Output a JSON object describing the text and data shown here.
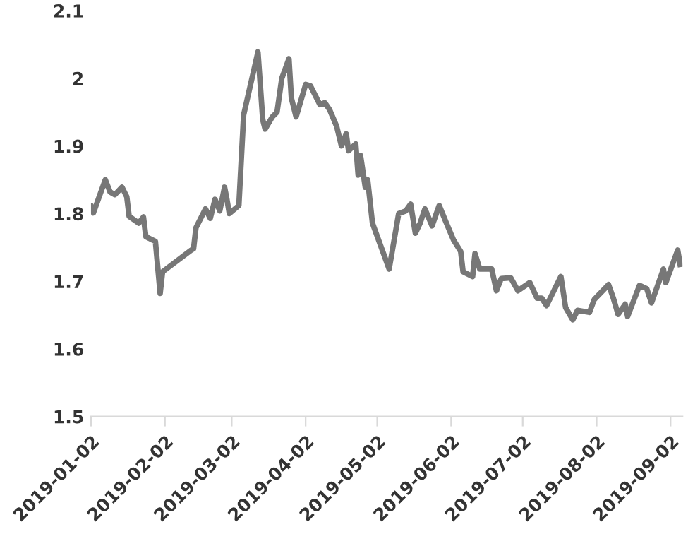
{
  "chart_data": {
    "type": "line",
    "grid": false,
    "legend": false,
    "marker": "none",
    "line_style": "solid",
    "xlim": [
      "2019-01-02",
      "2019-09-07"
    ],
    "xticks": [
      "2019-01-02",
      "2019-02-02",
      "2019-03-02",
      "2019-04-02",
      "2019-05-02",
      "2019-06-02",
      "2019-07-02",
      "2019-08-02",
      "2019-09-02"
    ],
    "ylim": [
      1.5,
      2.1
    ],
    "yticks": [
      1.5,
      1.6,
      1.7,
      1.8,
      1.9,
      {
        "value": 2,
        "label": "2"
      },
      2.1
    ],
    "x": [
      "2019-01-02",
      "2019-01-03",
      "2019-01-08",
      "2019-01-10",
      "2019-01-12",
      "2019-01-15",
      "2019-01-17",
      "2019-01-18",
      "2019-01-22",
      "2019-01-24",
      "2019-01-25",
      "2019-01-29",
      "2019-01-31",
      "2019-02-01",
      "2019-02-13",
      "2019-02-14",
      "2019-02-15",
      "2019-02-19",
      "2019-02-21",
      "2019-02-23",
      "2019-02-25",
      "2019-02-27",
      "2019-02-28",
      "2019-03-01",
      "2019-03-05",
      "2019-03-07",
      "2019-03-13",
      "2019-03-15",
      "2019-03-16",
      "2019-03-19",
      "2019-03-21",
      "2019-03-23",
      "2019-03-26",
      "2019-03-27",
      "2019-03-29",
      "2019-04-02",
      "2019-04-04",
      "2019-04-08",
      "2019-04-10",
      "2019-04-12",
      "2019-04-15",
      "2019-04-17",
      "2019-04-19",
      "2019-04-20",
      "2019-04-23",
      "2019-04-24",
      "2019-04-25",
      "2019-04-27",
      "2019-04-28",
      "2019-04-30",
      "2019-05-07",
      "2019-05-11",
      "2019-05-14",
      "2019-05-16",
      "2019-05-18",
      "2019-05-20",
      "2019-05-22",
      "2019-05-25",
      "2019-05-28",
      "2019-05-31",
      "2019-06-03",
      "2019-06-06",
      "2019-06-07",
      "2019-06-11",
      "2019-06-12",
      "2019-06-14",
      "2019-06-19",
      "2019-06-21",
      "2019-06-23",
      "2019-06-27",
      "2019-06-30",
      "2019-07-05",
      "2019-07-08",
      "2019-07-10",
      "2019-07-12",
      "2019-07-18",
      "2019-07-20",
      "2019-07-23",
      "2019-07-25",
      "2019-07-30",
      "2019-08-01",
      "2019-08-07",
      "2019-08-09",
      "2019-08-11",
      "2019-08-14",
      "2019-08-15",
      "2019-08-20",
      "2019-08-23",
      "2019-08-25",
      "2019-08-30",
      "2019-08-31",
      "2019-09-05",
      "2019-09-06"
    ],
    "series": [
      {
        "color": "#777777",
        "values": [
          1.811,
          1.801,
          1.85,
          1.832,
          1.828,
          1.839,
          1.825,
          1.796,
          1.786,
          1.795,
          1.766,
          1.759,
          1.682,
          1.714,
          1.746,
          1.748,
          1.779,
          1.807,
          1.793,
          1.821,
          1.804,
          1.839,
          1.821,
          1.8,
          1.812,
          1.946,
          2.039,
          1.939,
          1.925,
          1.943,
          1.95,
          2.0,
          2.029,
          1.971,
          1.943,
          1.991,
          1.989,
          1.961,
          1.964,
          1.954,
          1.929,
          1.9,
          1.918,
          1.893,
          1.903,
          1.857,
          1.886,
          1.839,
          1.85,
          1.786,
          1.718,
          1.8,
          1.804,
          1.814,
          1.771,
          1.786,
          1.807,
          1.782,
          1.812,
          1.786,
          1.761,
          1.744,
          1.714,
          1.707,
          1.741,
          1.718,
          1.718,
          1.686,
          1.704,
          1.705,
          1.686,
          1.698,
          1.675,
          1.675,
          1.664,
          1.707,
          1.661,
          1.643,
          1.657,
          1.654,
          1.673,
          1.695,
          1.675,
          1.651,
          1.666,
          1.648,
          1.694,
          1.689,
          1.668,
          1.718,
          1.698,
          1.746,
          1.725
        ]
      }
    ]
  }
}
